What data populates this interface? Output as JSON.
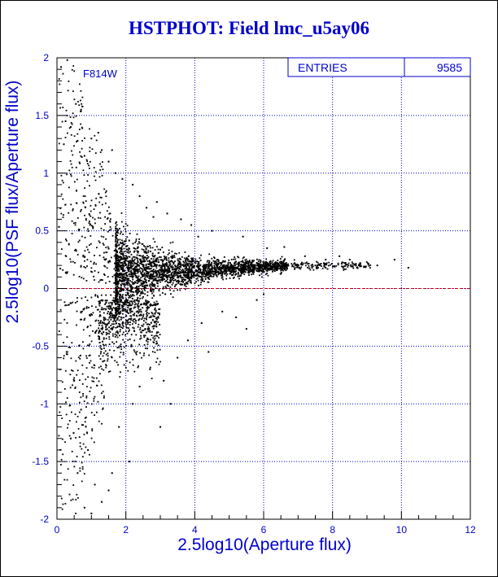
{
  "title": "HSTPHOT: Field lmc_u5ay06",
  "colors": {
    "title": "#0000cc",
    "axis_text": "#0000cc",
    "grid": "#0000cc",
    "points": "#000000",
    "zero_line": "#cc0000"
  },
  "chart_data": {
    "type": "scatter",
    "xlabel": "2.5log10(Aperture flux)",
    "ylabel": "2.5log10(PSF flux/Aperture flux)",
    "xlim": [
      0,
      12
    ],
    "ylim": [
      -2,
      2
    ],
    "x_ticks": [
      0,
      2,
      4,
      6,
      8,
      10,
      12
    ],
    "y_ticks": [
      -2,
      -1.5,
      -1,
      -0.5,
      0,
      0.5,
      1,
      1.5,
      2
    ],
    "grid": true,
    "reference_line": {
      "y": 0,
      "style": "dashed"
    },
    "annotation": "F814W",
    "stats_box": {
      "label": "ENTRIES",
      "value": "9585",
      "placement": "top-right"
    },
    "series": [
      {
        "points": [
          [
            0.12,
            1.92
          ],
          [
            0.3,
            1.98
          ],
          [
            0.55,
            1.6
          ],
          [
            0.7,
            1.55
          ],
          [
            0.25,
            1.45
          ],
          [
            0.4,
            1.4
          ],
          [
            0.6,
            1.28
          ],
          [
            1.0,
            1.3
          ],
          [
            1.2,
            1.35
          ],
          [
            1.3,
            1.2
          ],
          [
            1.6,
            1.2
          ],
          [
            0.8,
            1.15
          ],
          [
            1.5,
            1.1
          ],
          [
            0.2,
            1.25
          ],
          [
            1.9,
            0.95
          ],
          [
            1.7,
            1.0
          ],
          [
            2.2,
            0.9
          ],
          [
            2.6,
            0.7
          ],
          [
            3.2,
            0.65
          ],
          [
            2.9,
            0.75
          ],
          [
            3.6,
            0.6
          ],
          [
            2.4,
            0.8
          ],
          [
            3.9,
            0.55
          ],
          [
            4.1,
            0.45
          ],
          [
            4.5,
            0.5
          ],
          [
            2.8,
            0.62
          ],
          [
            5.4,
            0.45
          ],
          [
            6.1,
            0.35
          ],
          [
            6.6,
            0.36
          ],
          [
            7.2,
            0.28
          ],
          [
            7.8,
            0.25
          ],
          [
            8.2,
            0.28
          ],
          [
            8.5,
            0.25
          ],
          [
            8.8,
            0.22
          ],
          [
            9.3,
            0.2
          ],
          [
            9.8,
            0.25
          ],
          [
            10.2,
            0.18
          ],
          [
            7.5,
            0.2
          ],
          [
            6.9,
            0.22
          ],
          [
            0.3,
            -0.55
          ],
          [
            0.5,
            -0.8
          ],
          [
            0.7,
            -1.05
          ],
          [
            0.4,
            -1.3
          ],
          [
            0.9,
            -1.4
          ],
          [
            0.6,
            -1.6
          ],
          [
            1.1,
            -1.7
          ],
          [
            0.8,
            -1.9
          ],
          [
            1.3,
            -1.85
          ],
          [
            1.0,
            -1.95
          ],
          [
            1.6,
            -1.6
          ],
          [
            1.8,
            -1.2
          ],
          [
            2.2,
            -1.0
          ],
          [
            2.4,
            -0.85
          ],
          [
            2.7,
            -0.7
          ],
          [
            3.1,
            -0.8
          ],
          [
            3.3,
            -1.0
          ],
          [
            3.0,
            -1.2
          ],
          [
            3.5,
            -0.6
          ],
          [
            3.8,
            -0.45
          ],
          [
            4.2,
            -0.3
          ],
          [
            4.4,
            -0.55
          ],
          [
            4.8,
            -0.2
          ],
          [
            5.2,
            -0.25
          ],
          [
            5.8,
            -0.1
          ],
          [
            6.0,
            -0.05
          ],
          [
            5.5,
            -0.35
          ],
          [
            2.1,
            -1.5
          ],
          [
            1.5,
            -1.75
          ]
        ]
      }
    ]
  }
}
